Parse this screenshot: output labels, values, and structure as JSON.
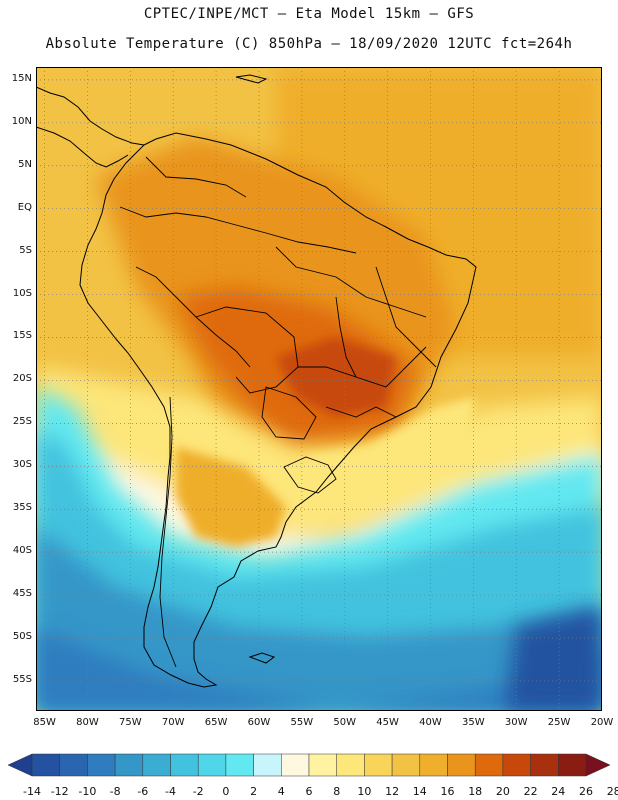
{
  "header": {
    "line1": "CPTEC/INPE/MCT –  Eta Model 15km – GFS",
    "line2": "Absolute Temperature (C) 850hPa – 18/09/2020 12UTC fct=264h"
  },
  "axes": {
    "lat_labels": [
      "15N",
      "10N",
      "5N",
      "EQ",
      "5S",
      "10S",
      "15S",
      "20S",
      "25S",
      "30S",
      "35S",
      "40S",
      "45S",
      "50S",
      "55S"
    ],
    "lat_values": [
      15,
      10,
      5,
      0,
      -5,
      -10,
      -15,
      -20,
      -25,
      -30,
      -35,
      -40,
      -45,
      -50,
      -55
    ],
    "lon_labels": [
      "85W",
      "80W",
      "75W",
      "70W",
      "65W",
      "60W",
      "55W",
      "50W",
      "45W",
      "40W",
      "35W",
      "30W",
      "25W",
      "20W"
    ],
    "lon_values": [
      -85,
      -80,
      -75,
      -70,
      -65,
      -60,
      -55,
      -50,
      -45,
      -40,
      -35,
      -30,
      -25,
      -20
    ],
    "lat_range": [
      -58.5,
      16.5
    ],
    "lon_range": [
      -86,
      -20
    ]
  },
  "colorbar": {
    "labels": [
      "-14",
      "-12",
      "-10",
      "-8",
      "-6",
      "-4",
      "-2",
      "0",
      "2",
      "4",
      "6",
      "8",
      "10",
      "12",
      "14",
      "16",
      "18",
      "20",
      "22",
      "24",
      "26",
      "28"
    ],
    "colors": [
      "#1f3f8f",
      "#2452a0",
      "#2a66b0",
      "#2f7dbf",
      "#3596c8",
      "#3bacd2",
      "#42c2de",
      "#4fd6e8",
      "#62e8f0",
      "#c8f4fb",
      "#fff8e0",
      "#fff2a0",
      "#fde67a",
      "#f8d45a",
      "#f2c245",
      "#efae2c",
      "#e9941c",
      "#df6a0e",
      "#c8480c",
      "#a8300e",
      "#8a1d12",
      "#7a0f1e"
    ]
  }
}
